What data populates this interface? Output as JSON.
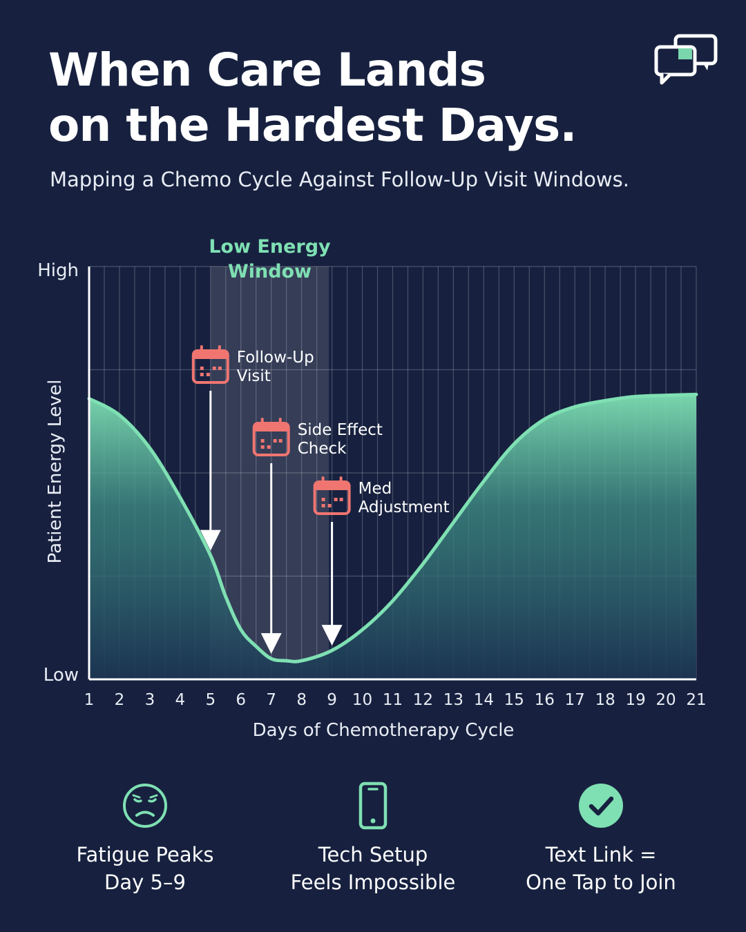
{
  "header": {
    "title_line1": "When Care Lands",
    "title_line2": "on the Hardest Days.",
    "subtitle": "Mapping a Chemo Cycle Against Follow-Up Visit Windows.",
    "logo_icon": "chat-bubbles-icon"
  },
  "colors": {
    "background": "#17213f",
    "accent_green": "#7fe0b3",
    "visit_red": "#f07570",
    "text": "#ffffff"
  },
  "chart_data": {
    "type": "area",
    "title": "",
    "xlabel": "Days of Chemotherapy Cycle",
    "ylabel": "Patient Energy Level",
    "x_ticks": [
      "1",
      "2",
      "3",
      "4",
      "5",
      "6",
      "7",
      "8",
      "9",
      "10",
      "11",
      "12",
      "13",
      "14",
      "15",
      "16",
      "17",
      "18",
      "19",
      "20",
      "21"
    ],
    "y_tick_labels": {
      "high": "High",
      "low": "Low"
    },
    "xlim": [
      1,
      21
    ],
    "ylim": [
      0,
      100
    ],
    "grid": true,
    "series": [
      {
        "x": [
          1,
          2,
          3,
          4,
          5,
          5.5,
          6,
          6.5,
          7,
          7.5,
          8,
          9,
          10,
          11,
          12,
          13,
          14,
          15,
          16,
          17,
          18,
          19,
          20,
          21
        ],
        "values": [
          68,
          64,
          56,
          44,
          30,
          20,
          12,
          8,
          5,
          4.5,
          4.5,
          7,
          12,
          19,
          28,
          38,
          48,
          57,
          63,
          66,
          67.5,
          68.5,
          68.8,
          69
        ]
      }
    ],
    "highlight_band": {
      "from": 5,
      "to": 8.9,
      "label_line1": "Low Energy",
      "label_line2": "Window"
    },
    "annotations": [
      {
        "line1": "Follow-Up",
        "line2": "Visit",
        "day": 5,
        "icon": "calendar-icon"
      },
      {
        "line1": "Side Effect",
        "line2": "Check",
        "day": 7,
        "icon": "calendar-icon"
      },
      {
        "line1": "Med",
        "line2": "Adjustment",
        "day": 9,
        "icon": "calendar-icon"
      }
    ]
  },
  "footer": {
    "items": [
      {
        "icon": "sad-face-icon",
        "line1": "Fatigue Peaks",
        "line2": "Day 5–9"
      },
      {
        "icon": "smartphone-icon",
        "line1": "Tech Setup",
        "line2": "Feels Impossible"
      },
      {
        "icon": "checkmark-circle-icon",
        "line1": "Text Link =",
        "line2": "One Tap to Join"
      }
    ]
  }
}
